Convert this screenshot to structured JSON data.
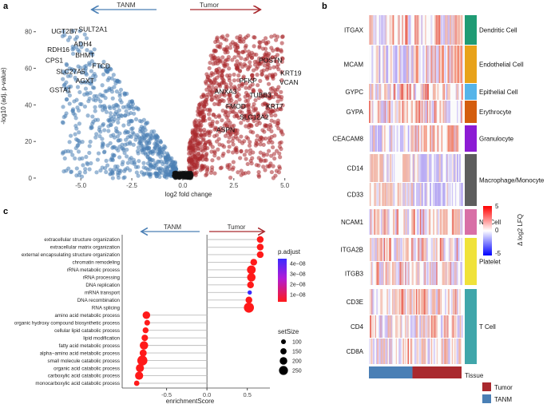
{
  "colors": {
    "tanm": "#4a7fb5",
    "tumor": "#a9292e",
    "grey": "#d0d0d0"
  },
  "panel_a": {
    "label": "a",
    "arrow_left": "TANM",
    "arrow_right": "Tumor",
    "chart_data": {
      "type": "scatter",
      "title": "",
      "xlabel": "log2 fold change",
      "ylabel": "-log10 (adj. p-value)",
      "xlim": [
        -7.2,
        6.5
      ],
      "ylim": [
        0,
        86
      ],
      "x_ticks": [
        "-5.0",
        "-2.5",
        "0.0",
        "2.5",
        "5.0"
      ],
      "y_ticks": [
        "0",
        "20",
        "40",
        "60",
        "80"
      ],
      "series_colors": {
        "TANM": "#4a7fb5",
        "Tumor": "#a9292e",
        "ns": "#000000"
      },
      "labeled_points": [
        {
          "name": "UGT2B7",
          "x": -5.8,
          "y": 79,
          "group": "TANM"
        },
        {
          "name": "SULT2A1",
          "x": -4.4,
          "y": 80,
          "group": "TANM"
        },
        {
          "name": "ADH4",
          "x": -4.9,
          "y": 72,
          "group": "TANM"
        },
        {
          "name": "RDH16",
          "x": -6.1,
          "y": 69,
          "group": "TANM"
        },
        {
          "name": "BHMT",
          "x": -4.8,
          "y": 66,
          "group": "TANM"
        },
        {
          "name": "CPS1",
          "x": -6.3,
          "y": 63,
          "group": "TANM"
        },
        {
          "name": "FTCD",
          "x": -4.0,
          "y": 60,
          "group": "TANM"
        },
        {
          "name": "SLC27A5",
          "x": -5.5,
          "y": 57,
          "group": "TANM"
        },
        {
          "name": "AGXT",
          "x": -4.8,
          "y": 52,
          "group": "TANM"
        },
        {
          "name": "GSTA1",
          "x": -6.0,
          "y": 47,
          "group": "TANM"
        },
        {
          "name": "POSTN",
          "x": 4.3,
          "y": 63,
          "group": "Tumor"
        },
        {
          "name": "KRT19",
          "x": 5.3,
          "y": 56,
          "group": "Tumor"
        },
        {
          "name": "PFKP",
          "x": 3.2,
          "y": 52,
          "group": "Tumor"
        },
        {
          "name": "VCAN",
          "x": 5.2,
          "y": 51,
          "group": "Tumor"
        },
        {
          "name": "ANXA3",
          "x": 2.1,
          "y": 46,
          "group": "Tumor"
        },
        {
          "name": "TUBB3",
          "x": 3.8,
          "y": 44,
          "group": "Tumor"
        },
        {
          "name": "FMOD",
          "x": 2.6,
          "y": 38,
          "group": "Tumor"
        },
        {
          "name": "KRT7",
          "x": 4.5,
          "y": 38,
          "group": "Tumor"
        },
        {
          "name": "SLC12A2",
          "x": 3.5,
          "y": 32,
          "group": "Tumor"
        },
        {
          "name": "ASPN",
          "x": 2.1,
          "y": 25,
          "group": "Tumor"
        }
      ]
    }
  },
  "panel_b": {
    "label": "b",
    "chart_data": {
      "type": "heatmap",
      "rows": [
        "ITGAX",
        "MCAM",
        "GYPC",
        "GYPA",
        "CEACAM8",
        "CD14",
        "CD33",
        "NCAM1",
        "ITGA2B",
        "ITGB3",
        "CD3E",
        "CD4",
        "CD8A"
      ],
      "cell_types": [
        {
          "name": "Dendritic Cell",
          "color": "#1f9b74"
        },
        {
          "name": "Endothelial Cell",
          "color": "#e8a21a"
        },
        {
          "name": "Epithelial Cell",
          "color": "#56b4e9"
        },
        {
          "name": "Erythrocyte",
          "color": "#d45d0e"
        },
        {
          "name": "Granulocyte",
          "color": "#8c1bd4"
        },
        {
          "name": "Macrophage/Monocyte",
          "color": "#5e5e5e"
        },
        {
          "name": "NK Cell",
          "color": "#d86fa6"
        },
        {
          "name": "Platelet",
          "color": "#f0e23a"
        },
        {
          "name": "T Cell",
          "color": "#40a6aa"
        }
      ],
      "color_scale": {
        "min": -5,
        "max": 5,
        "low": "#0000ff",
        "mid": "#ffffff",
        "high": "#ff0000",
        "ticks": [
          "5",
          "0",
          "-5"
        ]
      },
      "legend_title": "Δ log2 LFQ",
      "tissue_label": "Tissue",
      "tissue_groups": [
        {
          "name": "TANM",
          "fraction": 0.47,
          "color": "#4a7fb5"
        },
        {
          "name": "Tumor",
          "fraction": 0.53,
          "color": "#a9292e"
        }
      ],
      "tissue_legend": [
        {
          "name": "Tumor",
          "color": "#a9292e"
        },
        {
          "name": "TANM",
          "color": "#4a7fb5"
        }
      ]
    }
  },
  "panel_c": {
    "label": "c",
    "arrow_left": "TANM",
    "arrow_right": "Tumor",
    "chart_data": {
      "type": "scatter",
      "title": "",
      "xlabel": "enrichmentScore",
      "ylabel": "",
      "xlim": [
        -1.05,
        0.78
      ],
      "x_ticks": [
        "-0.5",
        "0.0",
        "0.5"
      ],
      "terms": [
        {
          "name": "extracellular structure organization",
          "score": 0.66,
          "padj": 1e-09,
          "setSize": 170
        },
        {
          "name": "extracellular matrix organization",
          "score": 0.66,
          "padj": 1e-09,
          "setSize": 170
        },
        {
          "name": "external encapsulating structure organization",
          "score": 0.66,
          "padj": 1e-09,
          "setSize": 170
        },
        {
          "name": "chromatin remodeling",
          "score": 0.58,
          "padj": 1e-09,
          "setSize": 170
        },
        {
          "name": "rRNA metabolic process",
          "score": 0.55,
          "padj": 1e-09,
          "setSize": 240
        },
        {
          "name": "rRNA processing",
          "score": 0.55,
          "padj": 1e-09,
          "setSize": 230
        },
        {
          "name": "DNA replication",
          "score": 0.54,
          "padj": 1e-09,
          "setSize": 170
        },
        {
          "name": "mRNA transport",
          "score": 0.53,
          "padj": 5e-08,
          "setSize": 80
        },
        {
          "name": "DNA recombination",
          "score": 0.52,
          "padj": 1e-09,
          "setSize": 170
        },
        {
          "name": "RNA splicing",
          "score": 0.52,
          "padj": 1e-09,
          "setSize": 290
        },
        {
          "name": "amino acid metabolic process",
          "score": -0.75,
          "padj": 1e-09,
          "setSize": 200
        },
        {
          "name": "organic hydroxy compound biosynthetic process",
          "score": -0.74,
          "padj": 1e-09,
          "setSize": 130
        },
        {
          "name": "cellular lipid catabolic process",
          "score": -0.76,
          "padj": 1e-09,
          "setSize": 140
        },
        {
          "name": "lipid modification",
          "score": -0.77,
          "padj": 1e-09,
          "setSize": 160
        },
        {
          "name": "fatty acid metabolic process",
          "score": -0.78,
          "padj": 1e-09,
          "setSize": 230
        },
        {
          "name": "alpha−amino acid metabolic process",
          "score": -0.79,
          "padj": 1e-09,
          "setSize": 180
        },
        {
          "name": "small molecule catabolic process",
          "score": -0.8,
          "padj": 1e-09,
          "setSize": 290
        },
        {
          "name": "organic acid catabolic process",
          "score": -0.83,
          "padj": 1e-09,
          "setSize": 220
        },
        {
          "name": "carboxylic acid catabolic process",
          "score": -0.84,
          "padj": 1e-09,
          "setSize": 220
        },
        {
          "name": "monocarboxylic acid catabolic process",
          "score": -0.87,
          "padj": 1e-09,
          "setSize": 120
        }
      ],
      "padj_legend": {
        "title": "p.adjust",
        "ticks": [
          "4e−08",
          "3e−08",
          "2e−08",
          "1e−08"
        ],
        "high_color": "#3b2bff",
        "low_color": "#ff1a1a"
      },
      "size_legend": {
        "title": "setSize",
        "values": [
          "100",
          "150",
          "200",
          "250"
        ]
      }
    }
  }
}
